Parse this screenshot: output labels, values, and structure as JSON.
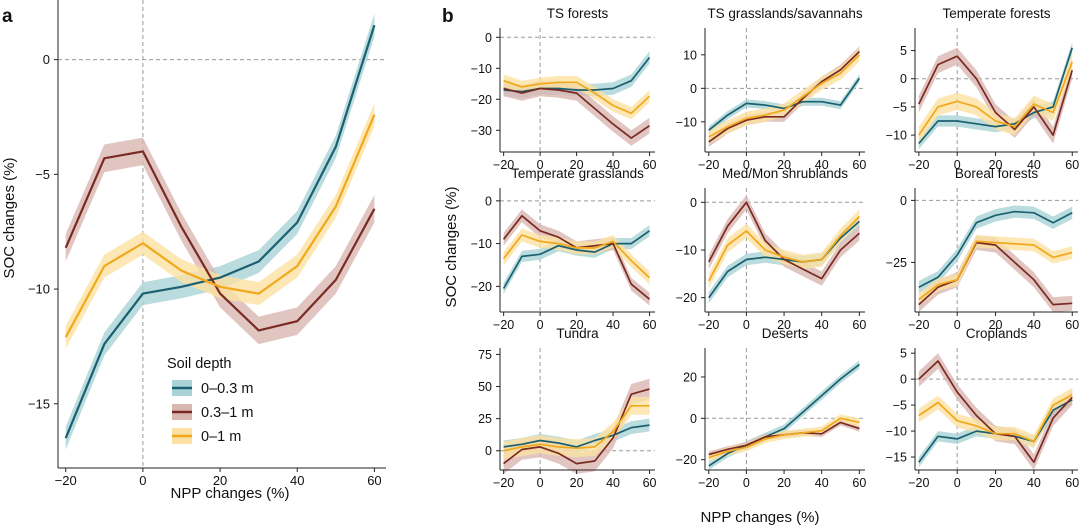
{
  "figure": {
    "panel_labels": [
      "a",
      "b"
    ],
    "shared_xlabel": "NPP changes (%)",
    "shared_ylabel": "SOC changes (%)"
  },
  "legend": {
    "title": "Soil depth",
    "items": [
      {
        "label": "0–0.3 m",
        "color": "#1a6070"
      },
      {
        "label": "0.3–1 m",
        "color": "#7a2a23"
      },
      {
        "label": "0–1 m",
        "color": "#f2a81b"
      }
    ]
  },
  "colors": {
    "shallow_line": "#1a6070",
    "shallow_band": "#a9d3d6",
    "deep_line": "#7a2a23",
    "deep_band": "#d9b7b1",
    "total_line": "#f2a81b",
    "total_band": "#fbe1a2",
    "ref_line": "#9a9a9a"
  },
  "chart_data": [
    {
      "type": "line",
      "panel": "a",
      "title": "",
      "xlabel": "NPP changes (%)",
      "ylabel": "SOC changes (%)",
      "xlim": [
        -22,
        63
      ],
      "ylim": [
        -17.8,
        2.6
      ],
      "xticks": [
        -20,
        0,
        20,
        40,
        60
      ],
      "yticks": [
        0,
        -5,
        -10,
        -15
      ],
      "x": [
        -20,
        -10,
        0,
        10,
        20,
        30,
        40,
        50,
        60
      ],
      "series": [
        {
          "name": "0–0.3 m",
          "values": [
            -16.5,
            -12.4,
            -10.2,
            -9.9,
            -9.5,
            -8.8,
            -7.1,
            -3.8,
            1.5
          ],
          "band": 0.5
        },
        {
          "name": "0.3–1 m",
          "values": [
            -8.2,
            -4.3,
            -4.0,
            -7.3,
            -10.2,
            -11.8,
            -11.4,
            -9.6,
            -6.5
          ],
          "band": 0.6
        },
        {
          "name": "0–1 m",
          "values": [
            -12.1,
            -9.0,
            -8.0,
            -9.2,
            -9.9,
            -10.2,
            -9.0,
            -6.4,
            -2.4
          ],
          "band": 0.5
        }
      ]
    },
    {
      "type": "line",
      "panel": "b",
      "title": "TS forests",
      "xlim": [
        -22,
        63
      ],
      "ylim": [
        -37,
        3
      ],
      "xticks": [
        -20,
        0,
        20,
        40,
        60
      ],
      "yticks": [
        0,
        -10,
        -20,
        -30
      ],
      "x": [
        -20,
        -10,
        0,
        10,
        20,
        30,
        40,
        50,
        60
      ],
      "series": [
        {
          "name": "0–0.3 m",
          "values": [
            -17,
            -17.5,
            -16.5,
            -16.5,
            -17,
            -17,
            -16.5,
            -14,
            -6.5
          ],
          "band": 2
        },
        {
          "name": "0.3–1 m",
          "values": [
            -16.5,
            -18,
            -16.5,
            -17,
            -18,
            -23,
            -28,
            -32.5,
            -28.5
          ],
          "band": 2.5
        },
        {
          "name": "0–1 m",
          "values": [
            -14,
            -16,
            -15,
            -14.5,
            -14.5,
            -18,
            -22,
            -24.5,
            -19
          ],
          "band": 2
        }
      ]
    },
    {
      "type": "line",
      "panel": "b",
      "title": "TS grasslands/savannahs",
      "xlim": [
        -22,
        63
      ],
      "ylim": [
        -19,
        18
      ],
      "xticks": [
        -20,
        0,
        20,
        40,
        60
      ],
      "yticks": [
        10,
        0,
        -10
      ],
      "x": [
        -20,
        -10,
        0,
        10,
        20,
        30,
        40,
        50,
        60
      ],
      "series": [
        {
          "name": "0–0.3 m",
          "values": [
            -12.5,
            -8,
            -4.5,
            -5,
            -6,
            -4,
            -4,
            -5,
            3
          ],
          "band": 1.2
        },
        {
          "name": "0.3–1 m",
          "values": [
            -16,
            -12,
            -9.5,
            -8.5,
            -8.5,
            -3,
            2,
            5.5,
            11
          ],
          "band": 1.5
        },
        {
          "name": "0–1 m",
          "values": [
            -14.5,
            -11.5,
            -9,
            -8,
            -6.5,
            -2.5,
            1.5,
            4.5,
            10
          ],
          "band": 2
        }
      ]
    },
    {
      "type": "line",
      "panel": "b",
      "title": "Temperate forests",
      "xlim": [
        -22,
        63
      ],
      "ylim": [
        -13,
        9
      ],
      "xticks": [
        -20,
        0,
        20,
        40,
        60
      ],
      "yticks": [
        5,
        0,
        -5,
        -10
      ],
      "x": [
        -20,
        -10,
        0,
        10,
        20,
        30,
        40,
        50,
        60
      ],
      "series": [
        {
          "name": "0–0.3 m",
          "values": [
            -11.5,
            -7.5,
            -7.5,
            -8,
            -8.5,
            -8,
            -6,
            -5,
            5.5
          ],
          "band": 1
        },
        {
          "name": "0.3–1 m",
          "values": [
            -4.5,
            2.5,
            4,
            0,
            -6,
            -9,
            -5,
            -10,
            1.5
          ],
          "band": 1.5
        },
        {
          "name": "0–1 m",
          "values": [
            -10,
            -5,
            -4,
            -5,
            -7.5,
            -8.5,
            -4.5,
            -6,
            3
          ],
          "band": 1.5
        }
      ]
    },
    {
      "type": "line",
      "panel": "b",
      "title": "Temperate grasslands",
      "xlim": [
        -22,
        63
      ],
      "ylim": [
        -26,
        3
      ],
      "xticks": [
        -20,
        0,
        20,
        40,
        60
      ],
      "yticks": [
        0,
        -10,
        -20
      ],
      "x": [
        -20,
        -10,
        0,
        10,
        20,
        30,
        40,
        50,
        60
      ],
      "series": [
        {
          "name": "0–0.3 m",
          "values": [
            -20.5,
            -13,
            -12.5,
            -10.5,
            -11.5,
            -12,
            -10,
            -10,
            -7
          ],
          "band": 1.3
        },
        {
          "name": "0.3–1 m",
          "values": [
            -9,
            -3.5,
            -7,
            -8.5,
            -11,
            -10.5,
            -10,
            -19.5,
            -23
          ],
          "band": 1.5
        },
        {
          "name": "0–1 m",
          "values": [
            -13.5,
            -8,
            -9.5,
            -10,
            -11,
            -11,
            -9.5,
            -14,
            -18
          ],
          "band": 1.5
        }
      ]
    },
    {
      "type": "line",
      "panel": "b",
      "title": "Med/Mon shrublands",
      "xlim": [
        -22,
        63
      ],
      "ylim": [
        -23,
        3
      ],
      "xticks": [
        -20,
        0,
        20,
        40,
        60
      ],
      "yticks": [
        0,
        -10,
        -20
      ],
      "x": [
        -20,
        -10,
        0,
        10,
        20,
        30,
        40,
        50,
        60
      ],
      "series": [
        {
          "name": "0–0.3 m",
          "values": [
            -20,
            -14.5,
            -12,
            -11.5,
            -12,
            -12.5,
            -12,
            -7.5,
            -4
          ],
          "band": 1.2
        },
        {
          "name": "0.3–1 m",
          "values": [
            -12.5,
            -5,
            0,
            -8,
            -12,
            -14,
            -16,
            -10,
            -6.5
          ],
          "band": 1.5
        },
        {
          "name": "0–1 m",
          "values": [
            -16.5,
            -9,
            -6,
            -10,
            -11.5,
            -12.5,
            -12,
            -7,
            -3
          ],
          "band": 1.5
        }
      ]
    },
    {
      "type": "line",
      "panel": "b",
      "title": "Boreal forests",
      "xlim": [
        -22,
        63
      ],
      "ylim": [
        -45,
        5
      ],
      "xticks": [
        -20,
        0,
        20,
        40,
        60
      ],
      "yticks": [
        0,
        -25
      ],
      "x": [
        -20,
        -10,
        0,
        10,
        20,
        30,
        40,
        50,
        60
      ],
      "series": [
        {
          "name": "0–0.3 m",
          "values": [
            -35,
            -31,
            -22,
            -9,
            -6,
            -4.5,
            -5,
            -9,
            -5
          ],
          "band": 2.5
        },
        {
          "name": "0.3–1 m",
          "values": [
            -42,
            -35,
            -32,
            -17,
            -18,
            -25,
            -32,
            -42,
            -41.5
          ],
          "band": 3
        },
        {
          "name": "0–1 m",
          "values": [
            -40,
            -34,
            -32,
            -16.5,
            -17,
            -17.5,
            -18,
            -23,
            -21
          ],
          "band": 2.5
        }
      ]
    },
    {
      "type": "line",
      "panel": "b",
      "title": "Tundra",
      "xlim": [
        -22,
        63
      ],
      "ylim": [
        -15,
        80
      ],
      "xticks": [
        -20,
        0,
        20,
        40,
        60
      ],
      "yticks": [
        75,
        50,
        25,
        0
      ],
      "x": [
        -20,
        -10,
        0,
        10,
        20,
        30,
        40,
        50,
        60
      ],
      "series": [
        {
          "name": "0–0.3 m",
          "values": [
            3,
            5,
            8,
            6,
            3,
            8,
            12,
            18,
            20
          ],
          "band": 5
        },
        {
          "name": "0.3–1 m",
          "values": [
            -10,
            1,
            3,
            -2,
            -10,
            -8,
            10,
            44,
            48
          ],
          "band": 8
        },
        {
          "name": "0–1 m",
          "values": [
            0,
            3,
            5,
            3,
            2,
            3,
            15,
            35,
            35
          ],
          "band": 7
        }
      ]
    },
    {
      "type": "line",
      "panel": "b",
      "title": "Deserts",
      "xlim": [
        -22,
        63
      ],
      "ylim": [
        -25,
        34
      ],
      "xticks": [
        -20,
        0,
        20,
        40,
        60
      ],
      "yticks": [
        20,
        0,
        -20
      ],
      "x": [
        -20,
        -10,
        0,
        10,
        20,
        30,
        40,
        50,
        60
      ],
      "series": [
        {
          "name": "0–0.3 m",
          "values": [
            -23,
            -17,
            -13,
            -9,
            -5,
            3,
            11,
            19,
            26
          ],
          "band": 2
        },
        {
          "name": "0.3–1 m",
          "values": [
            -17.5,
            -15,
            -13,
            -9,
            -8,
            -7,
            -7.5,
            -2,
            -5
          ],
          "band": 1.5
        },
        {
          "name": "0–1 m",
          "values": [
            -19,
            -16,
            -14,
            -10,
            -8,
            -7,
            -6,
            0,
            -2
          ],
          "band": 2
        }
      ]
    },
    {
      "type": "line",
      "panel": "b",
      "title": "Croplands",
      "xlim": [
        -22,
        63
      ],
      "ylim": [
        -17.5,
        6
      ],
      "xticks": [
        -20,
        0,
        20,
        40,
        60
      ],
      "yticks": [
        5,
        0,
        -5,
        -10,
        -15
      ],
      "x": [
        -20,
        -10,
        0,
        10,
        20,
        30,
        40,
        50,
        60
      ],
      "series": [
        {
          "name": "0–0.3 m",
          "values": [
            -16,
            -11,
            -11.5,
            -10,
            -10.5,
            -11,
            -12,
            -6,
            -4
          ],
          "band": 1
        },
        {
          "name": "0.3–1 m",
          "values": [
            0,
            3.5,
            -2.5,
            -7,
            -10.5,
            -11,
            -16,
            -7.5,
            -3.5
          ],
          "band": 1.5
        },
        {
          "name": "0–1 m",
          "values": [
            -7,
            -4.5,
            -8,
            -9,
            -10.5,
            -10.5,
            -12,
            -5,
            -3
          ],
          "band": 1.3
        }
      ]
    }
  ]
}
